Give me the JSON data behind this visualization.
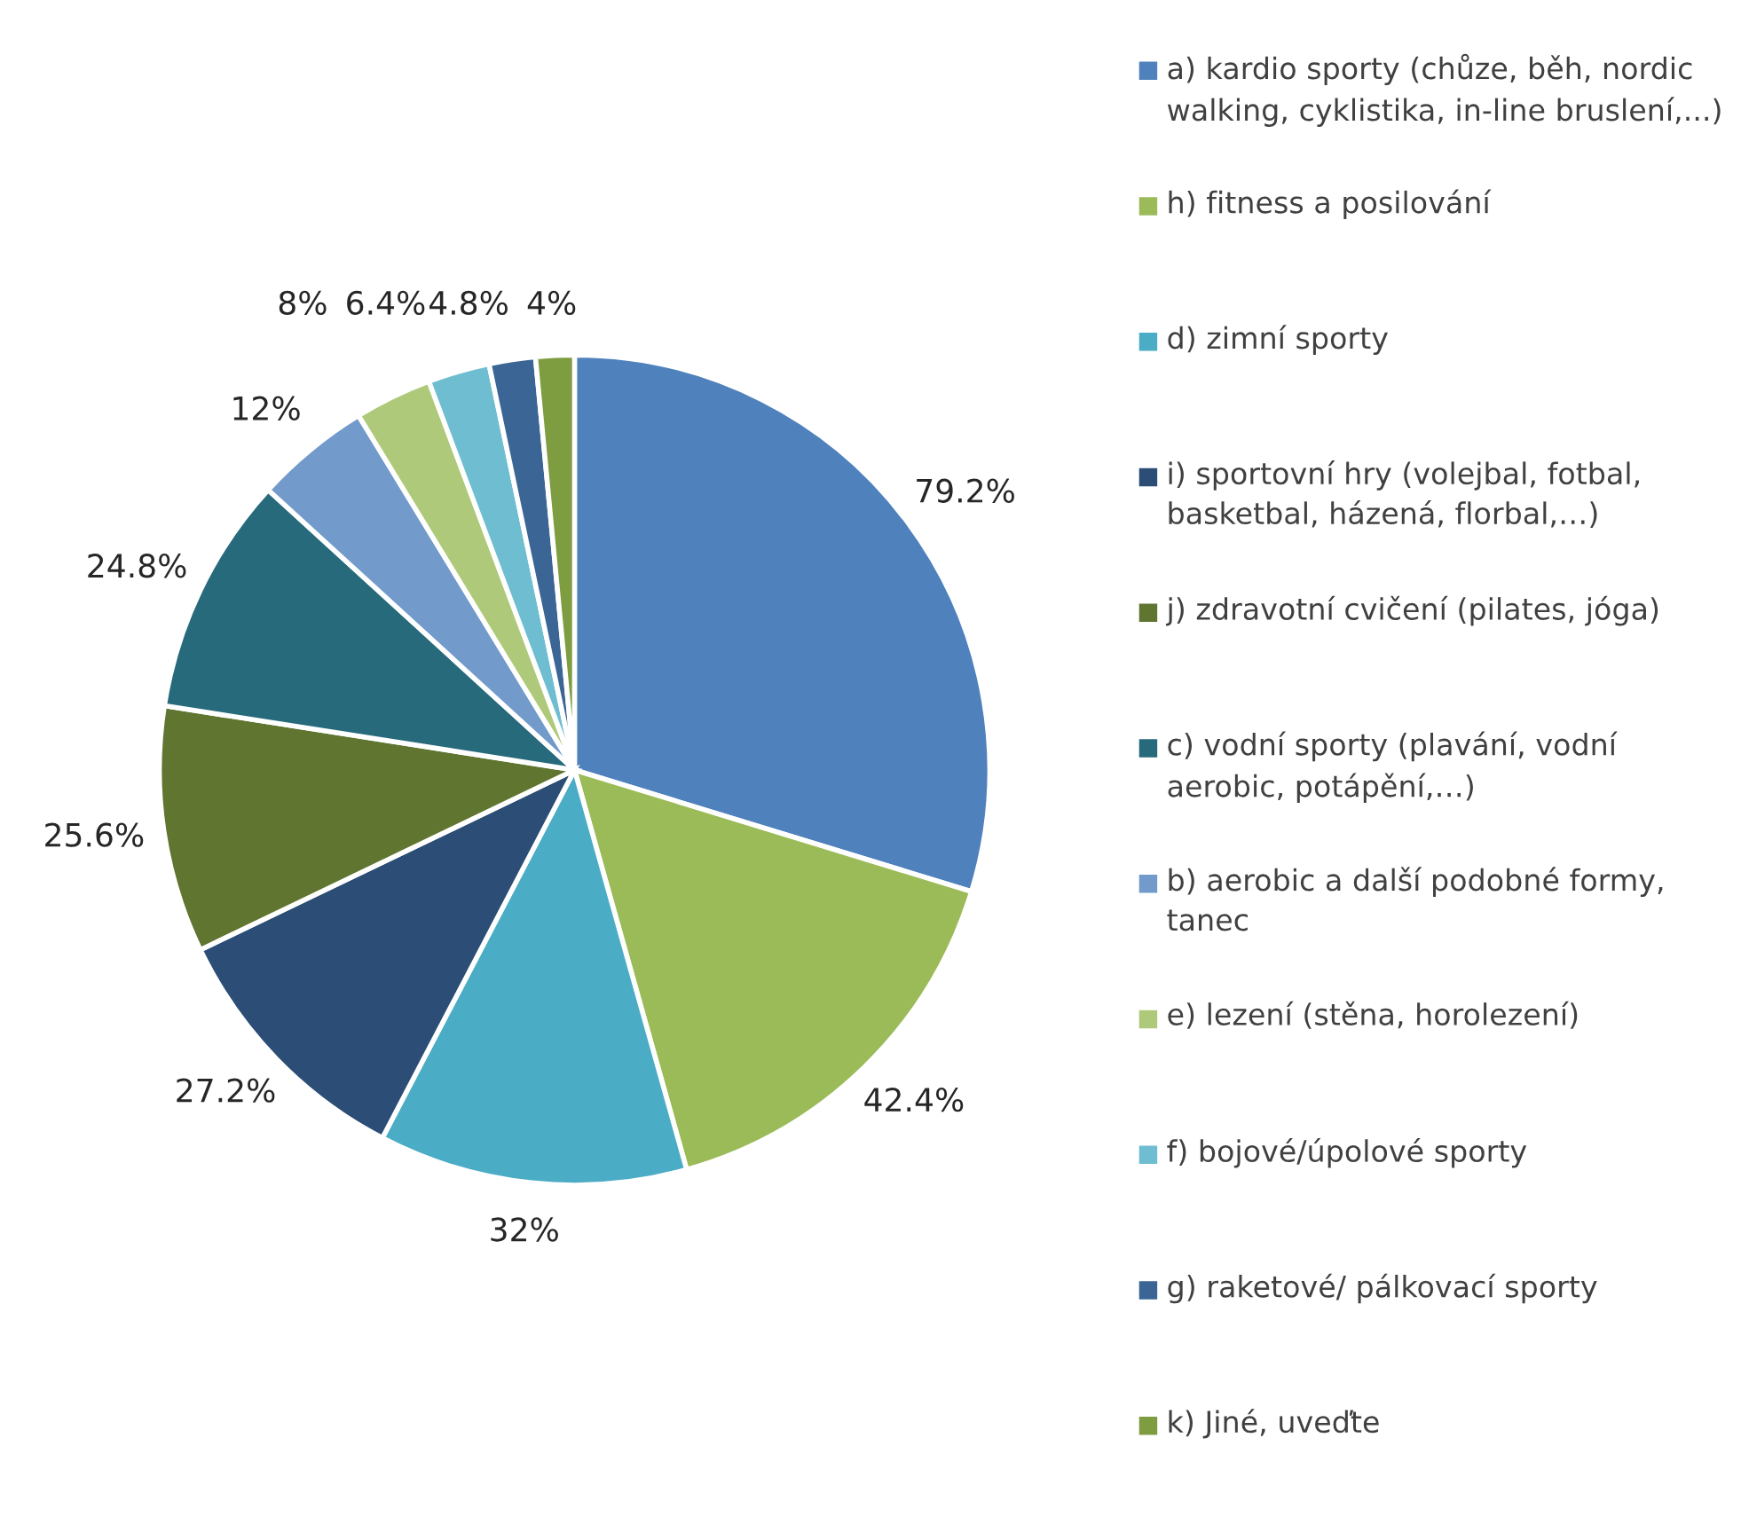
{
  "chart_data": {
    "type": "pie",
    "categories": [
      "a) kardio sporty (chůze, běh, nordic walking, cyklistika, in-line bruslení,...)",
      "h) fitness a posilování",
      "d) zimní sporty",
      "i) sportovní hry (volejbal, fotbal, basketbal, házená, florbal,…)",
      "j) zdravotní cvičení (pilates, jóga)",
      "c) vodní sporty (plavání, vodní aerobic, potápění,…)",
      "b) aerobic a další podobné formy, tanec",
      "e) lezení (stěna, horolezení)",
      "f) bojové/úpolové sporty",
      "g) raketové/ pálkovací sporty",
      "k) Jiné, uveďte"
    ],
    "values": [
      79.2,
      42.4,
      32,
      27.2,
      25.6,
      24.8,
      12,
      8,
      6.4,
      4.8,
      4
    ],
    "value_labels": [
      "79.2%",
      "42.4%",
      "32%",
      "27.2%",
      "25.6%",
      "24.8%",
      "12%",
      "8%",
      "6.4%",
      "4.8%",
      "4%"
    ],
    "colors": [
      "#4f81bd",
      "#9bbb59",
      "#4bacc6",
      "#2c4d75",
      "#5f7530",
      "#276a7c",
      "#729aca",
      "#afc97a",
      "#6fbdd1",
      "#3a6595",
      "#7e9c40"
    ],
    "legend": "right"
  }
}
